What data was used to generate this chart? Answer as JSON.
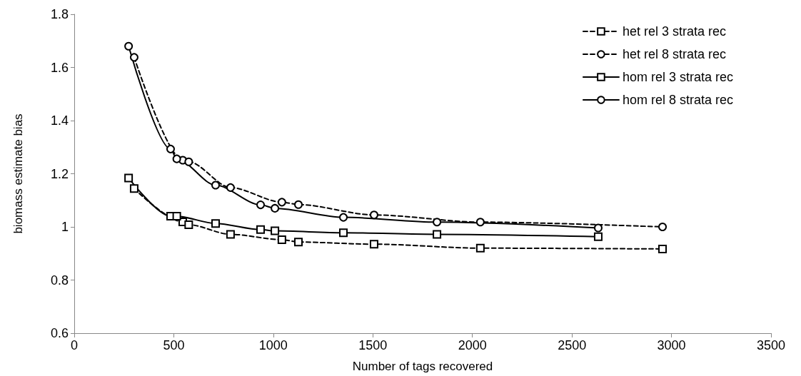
{
  "chart_data": {
    "type": "line",
    "xlabel": "Number of tags recovered",
    "ylabel": "biomass estimate bias",
    "xlim": [
      0,
      3500
    ],
    "xticks": [
      0,
      500,
      1000,
      1500,
      2000,
      2500,
      3000,
      3500
    ],
    "ylim": [
      0.6,
      1.8
    ],
    "yticks": [
      0.6,
      0.8,
      1,
      1.2,
      1.4,
      1.6,
      1.8
    ],
    "grid": false,
    "legend": "top right",
    "series": [
      {
        "name": "het rel 3 strata rec",
        "color": "#000000",
        "marker": "square",
        "line_style": "dashed",
        "x": [
          301,
          545,
          575,
          785,
          1043,
          1126,
          1506,
          2040,
          2955
        ],
        "values": [
          1.144,
          1.019,
          1.008,
          0.972,
          0.952,
          0.943,
          0.935,
          0.92,
          0.917
        ]
      },
      {
        "name": "het rel 8 strata rec",
        "color": "#000000",
        "marker": "circle",
        "line_style": "dashed",
        "x": [
          301,
          545,
          575,
          785,
          1043,
          1126,
          1506,
          2040,
          2955
        ],
        "values": [
          1.638,
          1.251,
          1.245,
          1.148,
          1.093,
          1.084,
          1.045,
          1.018,
          1.0
        ]
      },
      {
        "name": "hom rel 3 strata rec",
        "color": "#000000",
        "marker": "square",
        "line_style": "solid",
        "x": [
          273,
          484,
          515,
          710,
          936,
          1008,
          1352,
          1822,
          2632
        ],
        "values": [
          1.184,
          1.04,
          1.04,
          1.013,
          0.99,
          0.985,
          0.978,
          0.972,
          0.963
        ]
      },
      {
        "name": "hom rel 8 strata rec",
        "color": "#000000",
        "marker": "circle",
        "line_style": "solid",
        "x": [
          273,
          484,
          515,
          710,
          936,
          1008,
          1352,
          1822,
          2632
        ],
        "values": [
          1.68,
          1.293,
          1.256,
          1.157,
          1.083,
          1.07,
          1.036,
          1.018,
          0.996
        ]
      }
    ]
  }
}
